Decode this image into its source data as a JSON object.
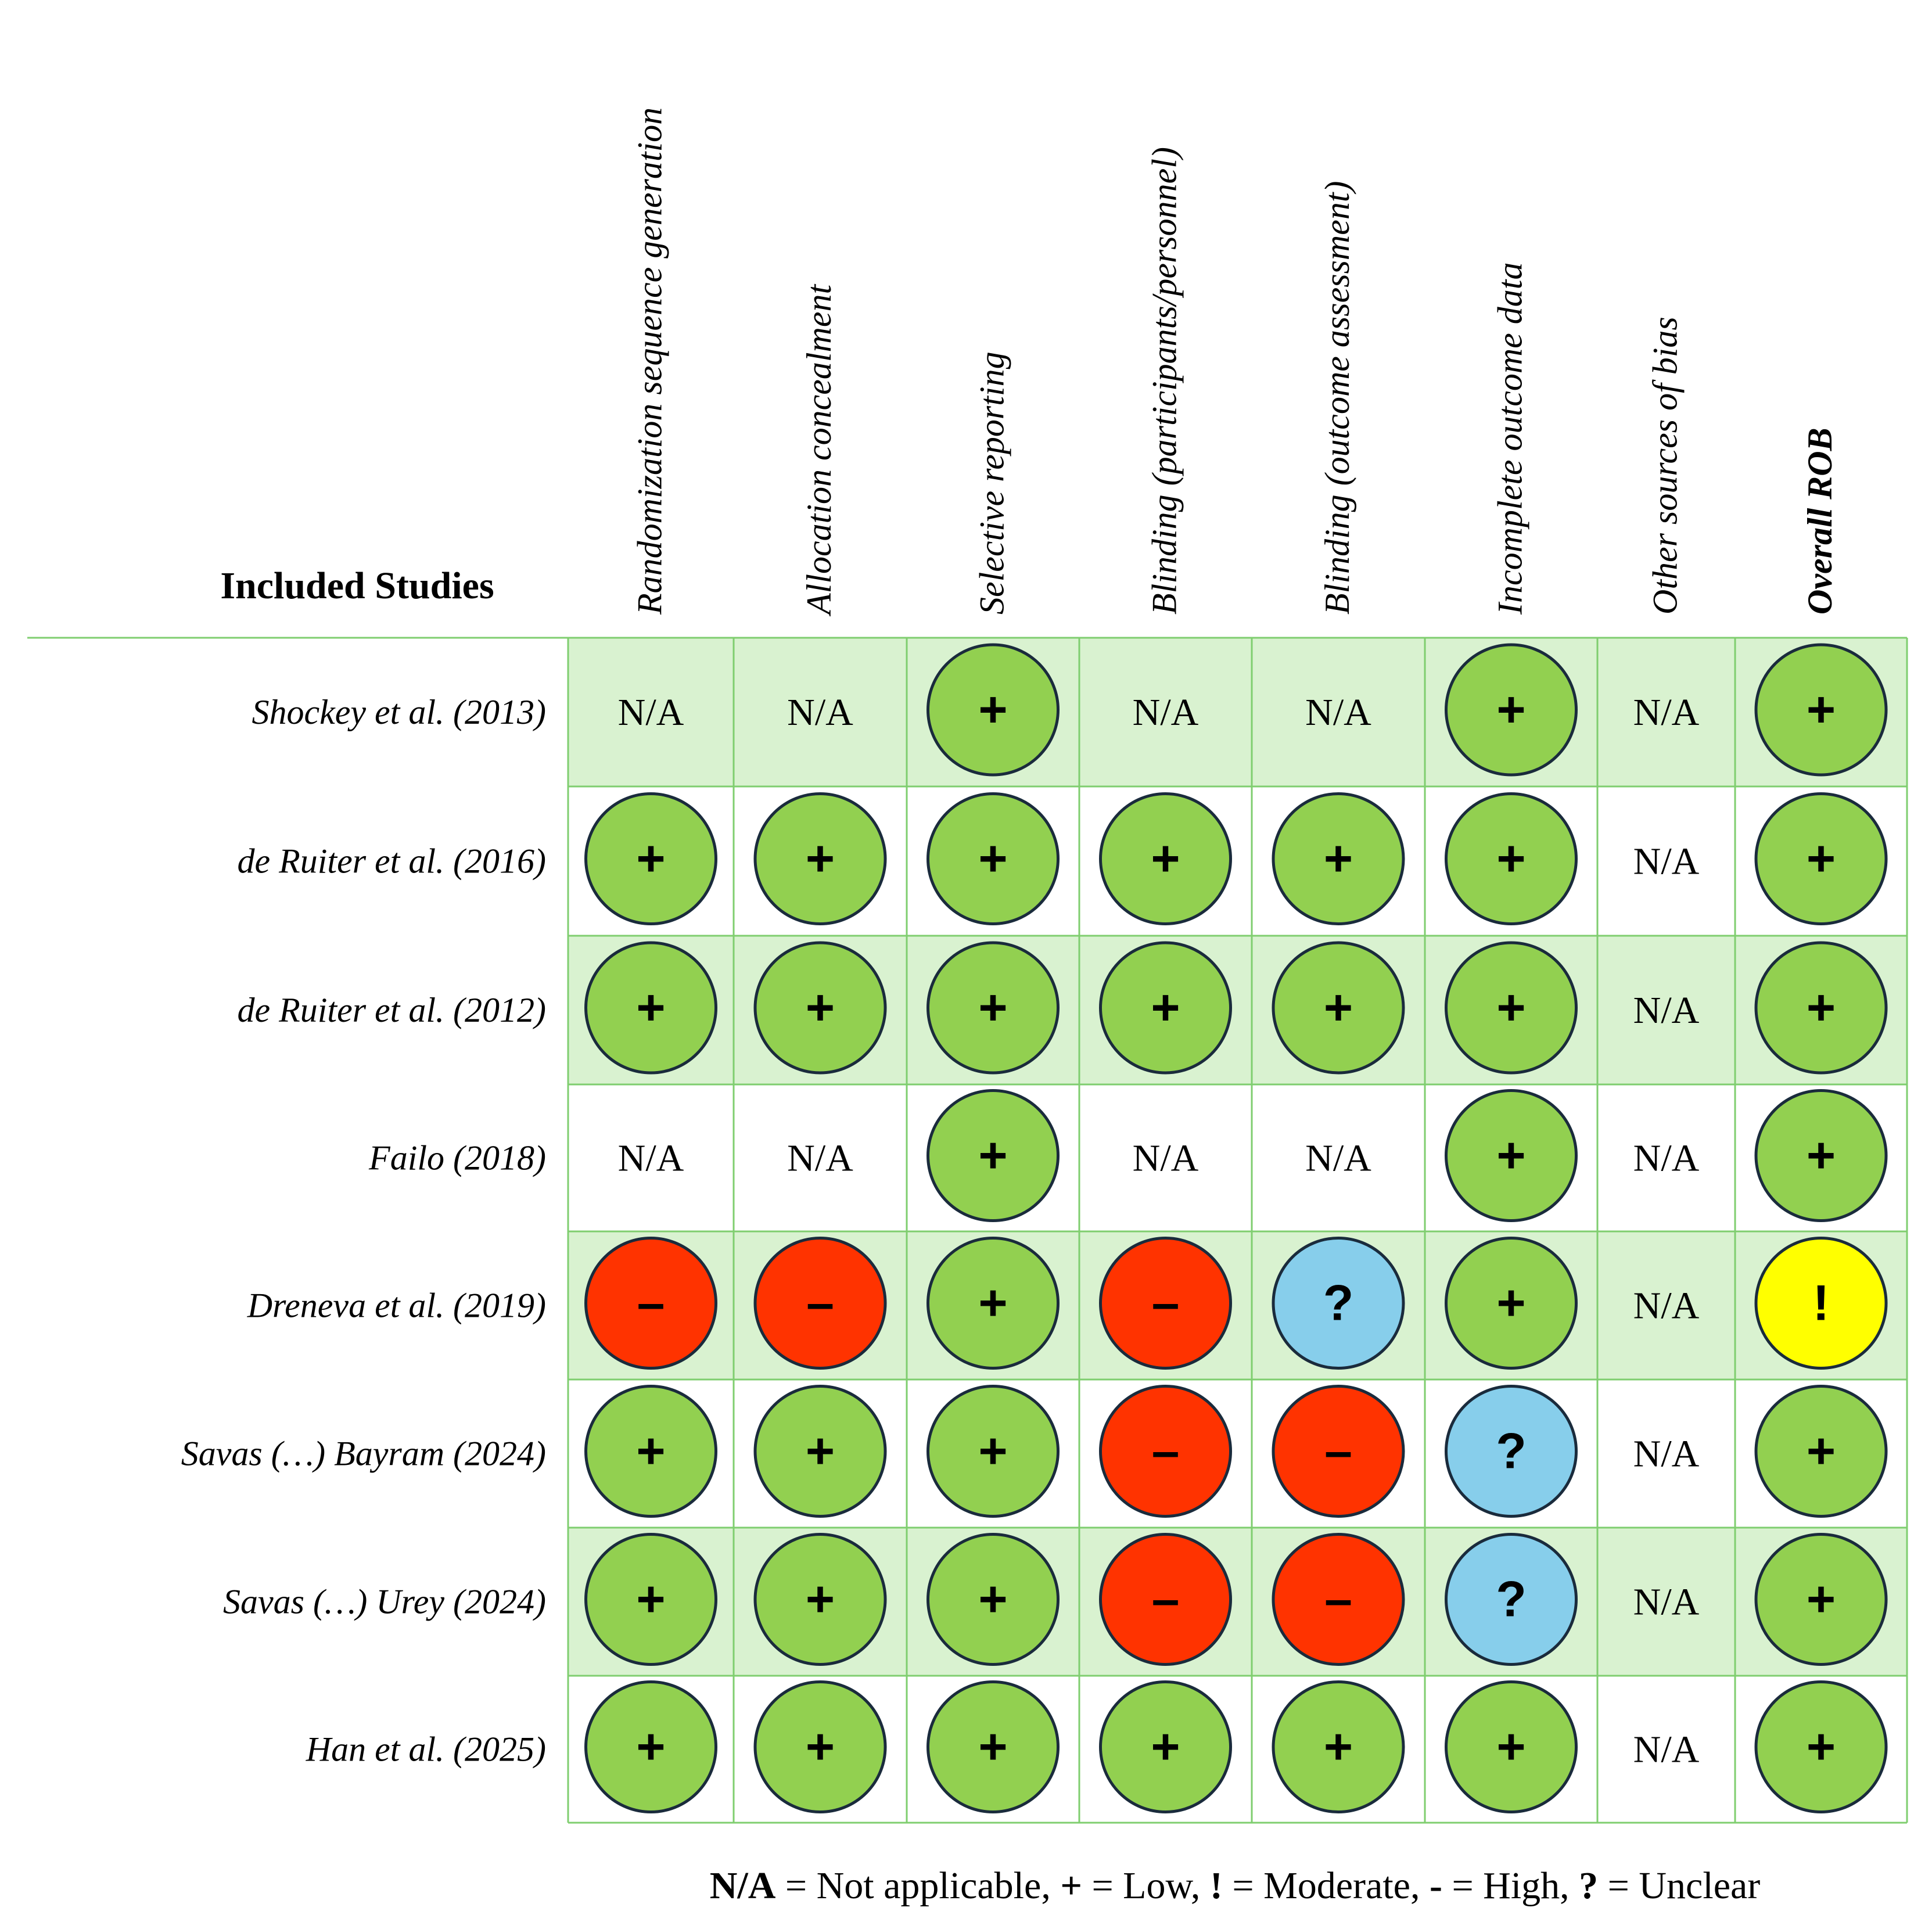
{
  "table": {
    "row_header_title": "Included Studies",
    "domains": [
      "Randomization sequence generation",
      "Allocation concealment",
      "Selective reporting",
      "Blinding (participants/personnel)",
      "Blinding (outcome assessment)",
      "Incomplete outcome data",
      "Other sources of bias",
      "Overall ROB"
    ],
    "studies": [
      {
        "name": "Shockey et al. (2013)",
        "ratings": [
          "N/A",
          "N/A",
          "+",
          "N/A",
          "N/A",
          "+",
          "N/A",
          "+"
        ]
      },
      {
        "name": "de Ruiter et al. (2016)",
        "ratings": [
          "+",
          "+",
          "+",
          "+",
          "+",
          "+",
          "N/A",
          "+"
        ]
      },
      {
        "name": "de Ruiter et al. (2012)",
        "ratings": [
          "+",
          "+",
          "+",
          "+",
          "+",
          "+",
          "N/A",
          "+"
        ]
      },
      {
        "name": "Failo (2018)",
        "ratings": [
          "N/A",
          "N/A",
          "+",
          "N/A",
          "N/A",
          "+",
          "N/A",
          "+"
        ]
      },
      {
        "name": "Dreneva et al. (2019)",
        "ratings": [
          "–",
          "–",
          "+",
          "–",
          "?",
          "+",
          "N/A",
          "!"
        ]
      },
      {
        "name": "Savas (…) Bayram (2024)",
        "ratings": [
          "+",
          "+",
          "+",
          "–",
          "–",
          "?",
          "N/A",
          "+"
        ]
      },
      {
        "name": "Savas (…) Urey (2024)",
        "ratings": [
          "+",
          "+",
          "+",
          "–",
          "–",
          "?",
          "N/A",
          "+"
        ]
      },
      {
        "name": "Han et al. (2025)",
        "ratings": [
          "+",
          "+",
          "+",
          "+",
          "+",
          "+",
          "N/A",
          "+"
        ]
      }
    ]
  },
  "legend": {
    "na_key": "N/A",
    "na_text": " = Not applicable, ",
    "low_key": "+",
    "low_text": " = Low, ",
    "moderate_key": "!",
    "moderate_text": " = Moderate, ",
    "high_key": "-",
    "high_text": " = High, ",
    "unclear_key": "?",
    "unclear_text": " = Unclear"
  },
  "colors": {
    "low": "#92d050",
    "high": "#ff3300",
    "unclear": "#87ceeb",
    "moderate": "#ffff00",
    "row_shade": "#d9f2d0",
    "grid_line": "#7fce6f",
    "circle_stroke": "#1a2b3c"
  }
}
